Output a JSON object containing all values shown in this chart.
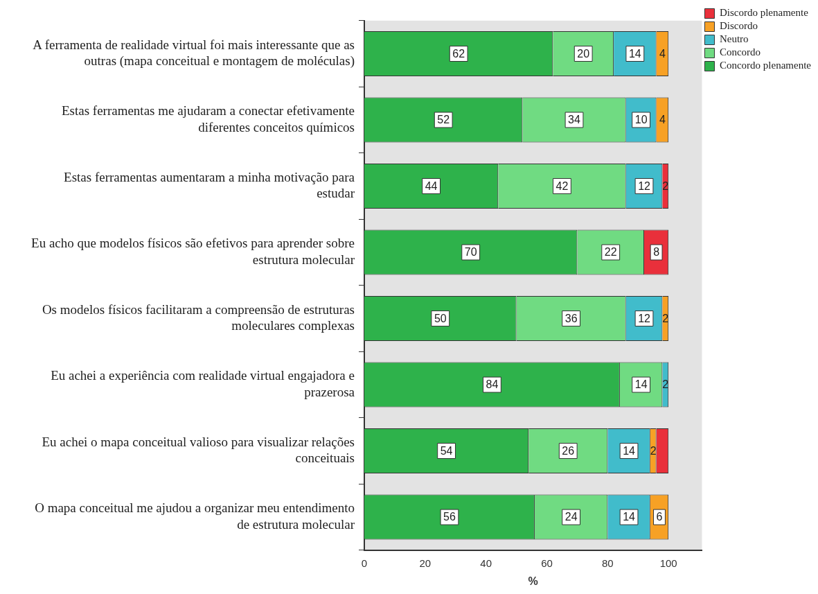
{
  "chart_data": {
    "type": "bar",
    "orientation": "horizontal",
    "stacked": true,
    "xlabel": "%",
    "legend": "top right",
    "grid": false,
    "categories": [
      "A ferramenta de realidade virtual foi mais interessante que as outras (mapa conceitual e montagem de moléculas)",
      "Estas ferramentas me ajudaram a conectar efetivamente diferentes conceitos químicos",
      "Estas ferramentas aumentaram a minha motivação para estudar",
      "Eu acho que modelos físicos são efetivos para aprender sobre estrutura molecular",
      "Os modelos físicos facilitaram a compreensão de estruturas moleculares complexas",
      "Eu achei a experiência com realidade virtual engajadora e prazerosa",
      "Eu achei o mapa conceitual valioso para visualizar relações conceituais",
      "O mapa conceitual me ajudou a organizar meu entendimento de estrutura molecular"
    ],
    "xlim": [
      0,
      111
    ],
    "xticks": [
      0,
      20,
      40,
      60,
      80,
      100
    ],
    "series": [
      {
        "name": "Concordo plenamente",
        "color": "#2eb24b",
        "values": [
          62,
          52,
          44,
          70,
          50,
          84,
          54,
          56
        ],
        "value_labels": [
          "62",
          "52",
          "44",
          "70",
          "50",
          "84",
          "54",
          "56"
        ]
      },
      {
        "name": "Concordo",
        "color": "#70db82",
        "values": [
          20,
          34,
          42,
          22,
          36,
          14,
          26,
          24
        ],
        "value_labels": [
          "20",
          "34",
          "42",
          "22",
          "36",
          "14",
          "26",
          "24"
        ]
      },
      {
        "name": "Neutro",
        "color": "#41bccb",
        "values": [
          14,
          10,
          12,
          0,
          12,
          2,
          14,
          14
        ],
        "value_labels": [
          "14",
          "10",
          "12",
          null,
          "12",
          "2",
          "14",
          "14"
        ]
      },
      {
        "name": "Discordo",
        "color": "#f7a125",
        "values": [
          4,
          4,
          0,
          0,
          2,
          0,
          2,
          6
        ],
        "value_labels": [
          "4",
          "4",
          null,
          null,
          "2",
          null,
          "2",
          "6"
        ]
      },
      {
        "name": "Discordo plenamente",
        "color": "#e9303b",
        "values": [
          0,
          0,
          2,
          8,
          0,
          0,
          4,
          0
        ],
        "value_labels": [
          null,
          null,
          "2",
          "8",
          null,
          null,
          null,
          null
        ]
      }
    ]
  }
}
